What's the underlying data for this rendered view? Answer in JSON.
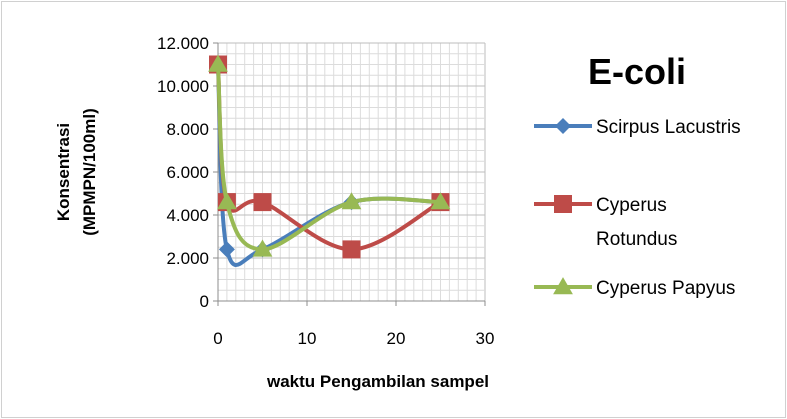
{
  "chart_data": {
    "type": "line",
    "title": "E-coli",
    "xlabel": "waktu Pengambilan sampel",
    "ylabel_line1": "Konsentrasi",
    "ylabel_line2": "(MPMPN/100ml)",
    "xlim": [
      0,
      30
    ],
    "ylim": [
      0,
      12000
    ],
    "xticks": [
      0,
      10,
      20,
      30
    ],
    "xtick_labels": [
      "0",
      "10",
      "20",
      "30"
    ],
    "yticks": [
      0,
      2000,
      4000,
      6000,
      8000,
      10000,
      12000
    ],
    "ytick_labels": [
      "0",
      "2.000",
      "4.000",
      "6.000",
      "8.000",
      "10.000",
      "12.000"
    ],
    "grid": true,
    "legend_position": "right",
    "series": [
      {
        "name": "Scirpus Lacustris",
        "legend_lines": [
          "Scirpus Lacustris"
        ],
        "color": "#4a7ebb",
        "marker": "diamond",
        "x": [
          0,
          1,
          5,
          15,
          25
        ],
        "y": [
          11000,
          2400,
          2400,
          4600,
          4600
        ]
      },
      {
        "name": "Cyperus Rotundus",
        "legend_lines": [
          "Cyperus",
          "Rotundus"
        ],
        "color": "#be4b48",
        "marker": "square",
        "x": [
          0,
          1,
          5,
          15,
          25
        ],
        "y": [
          11000,
          4600,
          4600,
          2400,
          4600
        ]
      },
      {
        "name": "Cyperus Papyus",
        "legend_lines": [
          "Cyperus Papyus"
        ],
        "color": "#98b954",
        "marker": "triangle",
        "x": [
          0,
          1,
          5,
          15,
          25
        ],
        "y": [
          11000,
          4600,
          2400,
          4600,
          4600
        ]
      }
    ]
  }
}
